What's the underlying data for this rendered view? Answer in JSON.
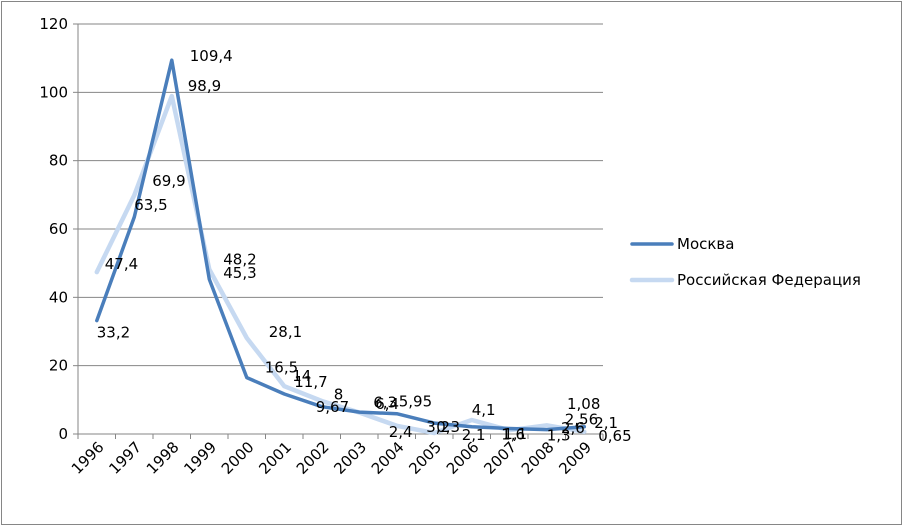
{
  "chart_data": {
    "type": "line",
    "categories": [
      "1996",
      "1997",
      "1998",
      "1999",
      "2000",
      "2001",
      "2002",
      "2003",
      "2004",
      "2005",
      "2006",
      "2007",
      "2008",
      "2009"
    ],
    "series": [
      {
        "name": "Москва",
        "color": "#4a7ebb",
        "values": [
          33.2,
          63.5,
          109.4,
          45.3,
          16.5,
          11.7,
          8,
          6.4,
          5.95,
          3.2,
          2.1,
          1.6,
          1.3,
          2.1
        ],
        "labels": [
          "33,2",
          "63,5",
          "109,4",
          "45,3",
          "16,5",
          "11,7",
          "8",
          "6,4",
          "5,95",
          "3,2",
          "2,1",
          "1,6",
          "1,3",
          "2,1"
        ]
      },
      {
        "name": "Российская Федерация",
        "color": "#c6d9f1",
        "values": [
          47.4,
          69.9,
          98.9,
          48.2,
          28.1,
          14,
          9.67,
          6.3,
          2.4,
          0.3,
          4.1,
          1.1,
          2.56,
          0.65
        ],
        "labels": [
          "47,4",
          "69,9",
          "98,9",
          "48,2",
          "28,1",
          "14",
          "9,67",
          "6,3",
          "2,4",
          "0,3",
          "4,1",
          "1,1",
          "2,56",
          "0,65"
        ]
      }
    ],
    "extra_labels": [
      "1,08",
      "2,6"
    ],
    "yticks": [
      "0",
      "20",
      "40",
      "60",
      "80",
      "100",
      "120"
    ],
    "ylim": [
      0,
      120
    ],
    "grid": true,
    "legend_position": "right"
  }
}
